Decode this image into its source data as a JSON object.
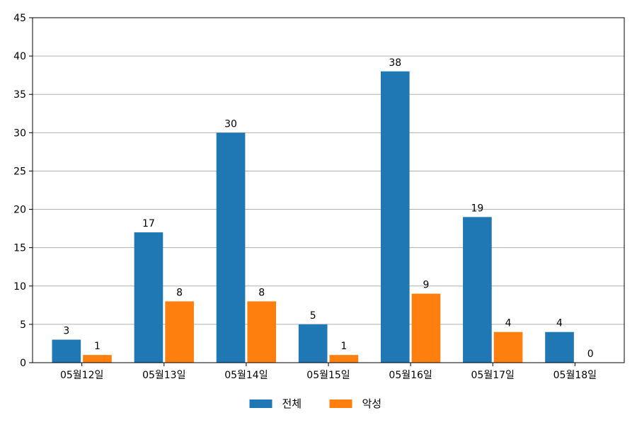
{
  "chart_data": {
    "type": "bar",
    "categories": [
      "05월12일",
      "05월13일",
      "05월14일",
      "05월15일",
      "05월16일",
      "05월17일",
      "05월18일"
    ],
    "series": [
      {
        "name": "전체",
        "values": [
          3,
          17,
          30,
          5,
          38,
          19,
          4
        ],
        "color": "#1f77b4"
      },
      {
        "name": "악성",
        "values": [
          1,
          8,
          8,
          1,
          9,
          4,
          0
        ],
        "color": "#ff7f0e"
      }
    ],
    "ylim": [
      0,
      45
    ],
    "yticks": [
      0,
      5,
      10,
      15,
      20,
      25,
      30,
      35,
      40,
      45
    ],
    "grid": "horizontal",
    "legend_position": "bottom-center",
    "data_labels": true
  }
}
